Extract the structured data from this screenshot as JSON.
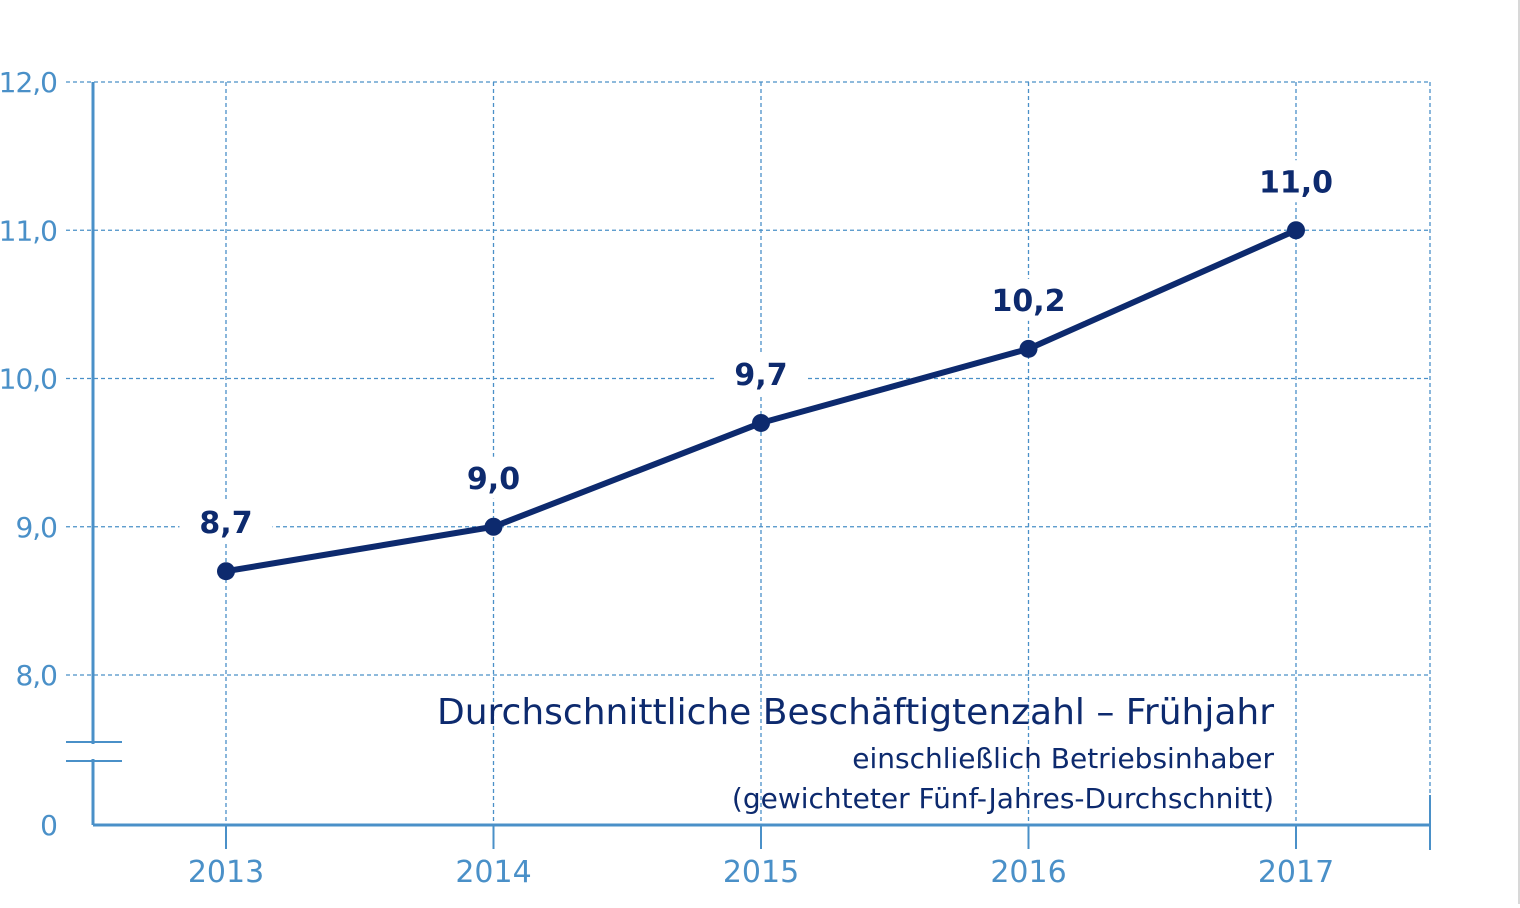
{
  "colors": {
    "axis": "#4a90c8",
    "grid": "#4a90c8",
    "series": "#0d2a6e",
    "tick_label": "#4a90c8",
    "title": "#0d2a6e"
  },
  "legend": {
    "title": "Durchschnittliche Beschäftigtenzahl – Frühjahr",
    "subtitle_1": "einschließlich Betriebsinhaber",
    "subtitle_2": "(gewichteter Fünf-Jahres-Durchschnitt)"
  },
  "chart_data": {
    "type": "line",
    "x": [
      "2013",
      "2014",
      "2015",
      "2016",
      "2017"
    ],
    "series": [
      {
        "values": [
          8.7,
          9.0,
          9.7,
          10.2,
          11.0
        ],
        "data_labels": [
          "8,7",
          "9,0",
          "9,7",
          "10,2",
          "11,0"
        ]
      }
    ],
    "y_ticks": [
      {
        "value": 12.0,
        "label": "12,0"
      },
      {
        "value": 11.0,
        "label": "11,0"
      },
      {
        "value": 10.0,
        "label": "10,0"
      },
      {
        "value": 9.0,
        "label": "9,0"
      },
      {
        "value": 8.0,
        "label": "8,0"
      },
      {
        "value": 0,
        "label": "0"
      }
    ],
    "ylim": [
      8.0,
      12.0
    ],
    "y_axis_break": true,
    "grid": true,
    "legend_placement": "bottom-right"
  }
}
